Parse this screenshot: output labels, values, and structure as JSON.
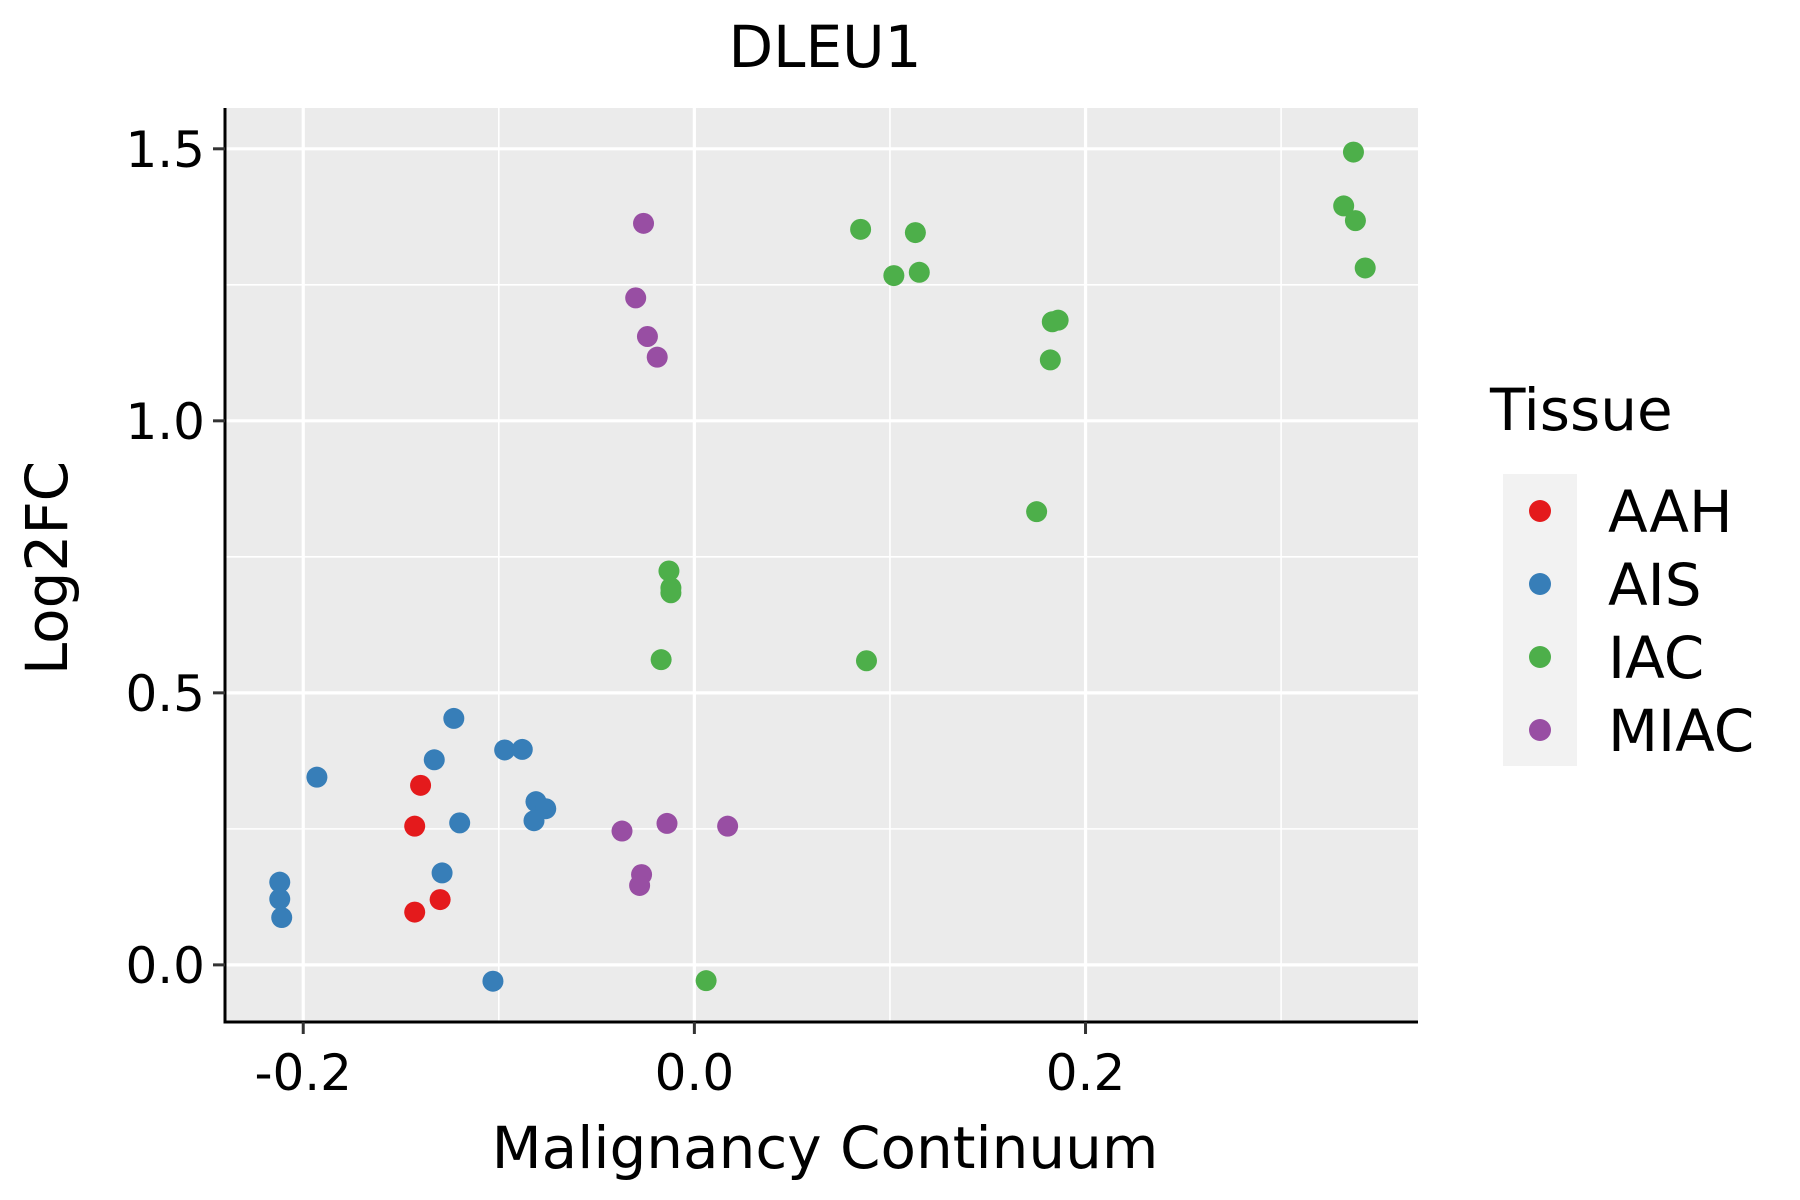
{
  "chart_data": {
    "type": "scatter",
    "title": "DLEU1",
    "xlabel": "Malignancy Continuum",
    "ylabel": "Log2FC",
    "xlim": [
      -0.24,
      0.37
    ],
    "ylim": [
      -0.105,
      1.575
    ],
    "x_ticks": [
      -0.2,
      0.0,
      0.2
    ],
    "x_tick_labels": [
      "-0.2",
      "0.0",
      "0.2"
    ],
    "x_minor_ticks": [
      -0.1,
      0.1,
      0.3
    ],
    "y_ticks": [
      0.0,
      0.5,
      1.0,
      1.5
    ],
    "y_tick_labels": [
      "0.0",
      "0.5",
      "1.0",
      "1.5"
    ],
    "y_minor_ticks": [
      0.25,
      0.75,
      1.25
    ],
    "grid": true,
    "panel_background": "#EBEBEB",
    "legend_title": "Tissue",
    "legend_position": "right",
    "series": [
      {
        "name": "AAH",
        "color": "#E41A1C",
        "points": [
          [
            -0.14,
            0.33
          ],
          [
            -0.143,
            0.255
          ],
          [
            -0.13,
            0.12
          ],
          [
            -0.143,
            0.097
          ]
        ]
      },
      {
        "name": "AIS",
        "color": "#377EB8",
        "points": [
          [
            -0.193,
            0.345
          ],
          [
            -0.123,
            0.453
          ],
          [
            -0.133,
            0.377
          ],
          [
            -0.12,
            0.261
          ],
          [
            -0.097,
            0.395
          ],
          [
            -0.088,
            0.396
          ],
          [
            -0.081,
            0.3
          ],
          [
            -0.076,
            0.287
          ],
          [
            -0.082,
            0.265
          ],
          [
            -0.129,
            0.169
          ],
          [
            -0.212,
            0.152
          ],
          [
            -0.212,
            0.121
          ],
          [
            -0.211,
            0.087
          ],
          [
            -0.103,
            -0.03
          ]
        ]
      },
      {
        "name": "IAC",
        "color": "#4DAF4A",
        "points": [
          [
            0.337,
            1.494
          ],
          [
            0.332,
            1.395
          ],
          [
            0.338,
            1.368
          ],
          [
            0.343,
            1.281
          ],
          [
            0.085,
            1.352
          ],
          [
            0.113,
            1.346
          ],
          [
            0.102,
            1.267
          ],
          [
            0.115,
            1.273
          ],
          [
            0.183,
            1.182
          ],
          [
            0.186,
            1.185
          ],
          [
            0.182,
            1.112
          ],
          [
            0.175,
            0.833
          ],
          [
            -0.013,
            0.724
          ],
          [
            -0.012,
            0.693
          ],
          [
            -0.012,
            0.684
          ],
          [
            -0.017,
            0.561
          ],
          [
            0.088,
            0.559
          ],
          [
            0.006,
            -0.029
          ]
        ]
      },
      {
        "name": "MIAC",
        "color": "#984EA3",
        "points": [
          [
            -0.026,
            1.363
          ],
          [
            -0.03,
            1.226
          ],
          [
            -0.024,
            1.155
          ],
          [
            -0.019,
            1.117
          ],
          [
            -0.037,
            0.246
          ],
          [
            -0.014,
            0.26
          ],
          [
            0.017,
            0.255
          ],
          [
            -0.027,
            0.166
          ],
          [
            -0.028,
            0.146
          ]
        ]
      }
    ]
  }
}
